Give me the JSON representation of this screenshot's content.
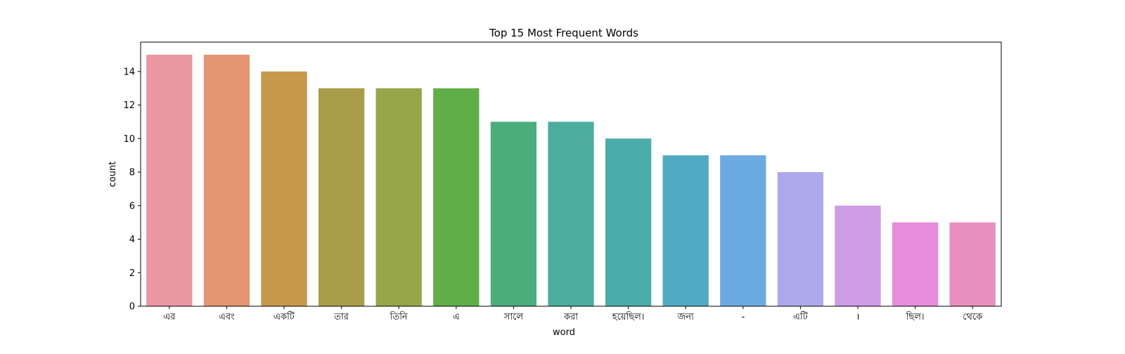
{
  "chart_data": {
    "type": "bar",
    "title": "Top 15 Most Frequent Words",
    "xlabel": "word",
    "ylabel": "count",
    "ylim": [
      0,
      15.75
    ],
    "yticks": [
      0,
      2,
      4,
      6,
      8,
      10,
      12,
      14
    ],
    "categories": [
      "এর",
      "এবং",
      "একটি",
      "তার",
      "তিনি",
      "এ",
      "সালে",
      "করা",
      "হয়েছিল।",
      "জন্য",
      "-",
      "এটি",
      "।",
      "ছিল।",
      "থেকে"
    ],
    "values": [
      15,
      15,
      14,
      13,
      13,
      13,
      11,
      11,
      10,
      9,
      9,
      8,
      6,
      5,
      5
    ],
    "colors": [
      "#ea96a3",
      "#e39572",
      "#c69a4a",
      "#a99c49",
      "#96a648",
      "#5fae48",
      "#4aad7c",
      "#4aad9e",
      "#4aaca9",
      "#4fabc3",
      "#6babe1",
      "#acaaec",
      "#cf9ce6",
      "#e68cdb",
      "#e88fbd"
    ]
  }
}
